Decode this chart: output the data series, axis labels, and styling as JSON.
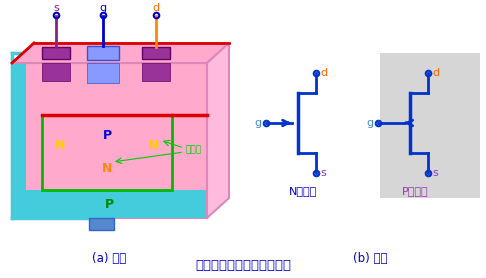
{
  "title": "结型场效应管的结构和符号",
  "label_a": "(a) 结构",
  "label_b": "(b) 符号",
  "label_N": "N沟道管",
  "label_P": "P沟道管",
  "bg_color": "#ffffff",
  "fig_bg": "#ffffff",
  "colors": {
    "pink_body": "#ffaacc",
    "pink_edge": "#dd88bb",
    "cyan": "#44ccdd",
    "green": "#00bb00",
    "red_line": "#dd0000",
    "purple_contact": "#993399",
    "blue_contact": "#8899ff",
    "blue_lead": "#0000cc",
    "purple_lead": "#882288",
    "orange_lead": "#ff8800",
    "N_yellow": "#ffcc00",
    "N_orange": "#ff8800",
    "P_blue": "#0000cc",
    "P_green": "#008800",
    "depletion_green": "#00cc00",
    "jfet_blue": "#0033cc",
    "g_blue": "#4488cc",
    "s_purple": "#9933cc",
    "d_orange": "#ff6600",
    "P_label_purple": "#9933aa",
    "gray_box": "#bbbbbb"
  }
}
